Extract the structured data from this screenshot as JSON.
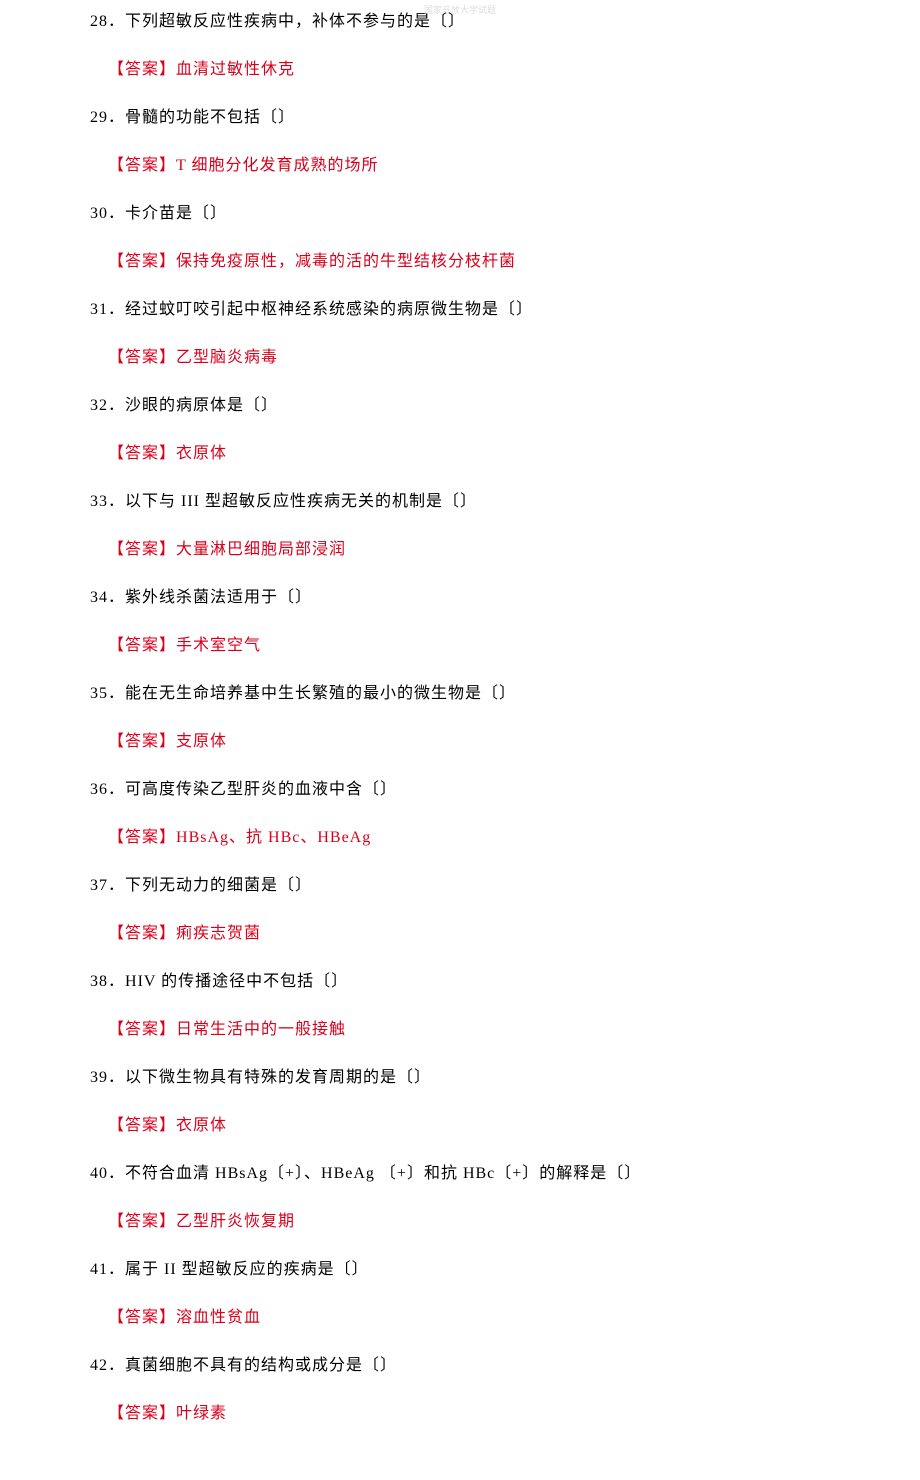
{
  "watermark": "国家开放大学试题",
  "answer_label": "【答案】",
  "items": [
    {
      "num": "28．",
      "question": "下列超敏反应性疾病中，补体不参与的是〔〕",
      "answer": "血清过敏性休克"
    },
    {
      "num": "29．",
      "question": "骨髓的功能不包括〔〕",
      "answer": "T 细胞分化发育成熟的场所"
    },
    {
      "num": "30．",
      "question": "卡介苗是〔〕",
      "answer": "保持免疫原性，减毒的活的牛型结核分枝杆菌"
    },
    {
      "num": "31．",
      "question": "经过蚊叮咬引起中枢神经系统感染的病原微生物是〔〕",
      "answer": "乙型脑炎病毒"
    },
    {
      "num": "32．",
      "question": "沙眼的病原体是〔〕",
      "answer": "衣原体"
    },
    {
      "num": "33．",
      "question": "以下与 III 型超敏反应性疾病无关的机制是〔〕",
      "answer": "大量淋巴细胞局部浸润"
    },
    {
      "num": "34．",
      "question": "紫外线杀菌法适用于〔〕",
      "answer": "手术室空气"
    },
    {
      "num": "35．",
      "question": "能在无生命培养基中生长繁殖的最小的微生物是〔〕",
      "answer": "支原体"
    },
    {
      "num": "36．",
      "question": "可高度传染乙型肝炎的血液中含〔〕",
      "answer": "HBsAg、抗 HBc、HBeAg"
    },
    {
      "num": "37．",
      "question": "下列无动力的细菌是〔〕",
      "answer": "痢疾志贺菌"
    },
    {
      "num": "38．",
      "question": "HIV 的传播途径中不包括〔〕",
      "answer": "日常生活中的一般接触"
    },
    {
      "num": "39．",
      "question": "以下微生物具有特殊的发育周期的是〔〕",
      "answer": "衣原体"
    },
    {
      "num": "40．",
      "question": "不符合血清 HBsAg〔+〕、HBeAg 〔+〕和抗 HBc〔+〕的解释是〔〕",
      "answer": "乙型肝炎恢复期"
    },
    {
      "num": "41．",
      "question": "属于 II 型超敏反应的疾病是〔〕",
      "answer": "溶血性贫血"
    },
    {
      "num": "42．",
      "question": "真菌细胞不具有的结构或成分是〔〕",
      "answer": "叶绿素"
    }
  ],
  "styles": {
    "question_color": "#000000",
    "answer_color": "#d9001b",
    "background_color": "#ffffff",
    "font_size": 16,
    "watermark_color": "#dddddd"
  }
}
